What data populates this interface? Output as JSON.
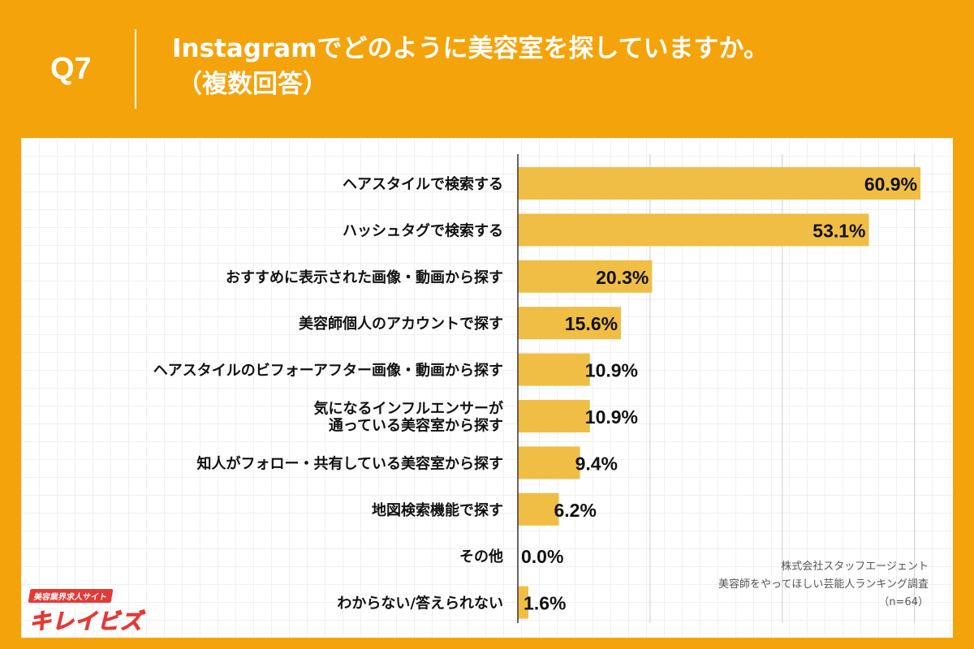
{
  "header": {
    "question_number": "Q7",
    "title_line1": "Instagramでどのように美容室を探していますか。",
    "title_line2": "（複数回答）"
  },
  "credit": {
    "line1": "株式会社スタッフエージェント",
    "line2": "美容師をやってほしい芸能人ランキング調査",
    "line3": "（n=64）"
  },
  "logo": {
    "tagline": "美容業界求人サイト",
    "name": "キレイビズ"
  },
  "colors": {
    "background": "#F5A30A",
    "bar": "#F0BE45",
    "gridline": "#cccccc",
    "text": "#111111"
  },
  "chart_data": {
    "type": "bar",
    "orientation": "horizontal",
    "categories": [
      [
        "ヘアスタイルで検索する"
      ],
      [
        "ハッシュタグで検索する"
      ],
      [
        "おすすめに表示された画像・動画から探す"
      ],
      [
        "美容師個人のアカウントで探す"
      ],
      [
        "ヘアスタイルのビフォーアフター画像・動画から探す"
      ],
      [
        "気になるインフルエンサーが",
        "通っている美容室から探す"
      ],
      [
        "知人がフォロー・共有している美容室から探す"
      ],
      [
        "地図検索機能で探す"
      ],
      [
        "その他"
      ],
      [
        "わからない/答えられない"
      ]
    ],
    "values": [
      60.9,
      53.1,
      20.3,
      15.6,
      10.9,
      10.9,
      9.4,
      6.2,
      0.0,
      1.6
    ],
    "value_labels": [
      "60.9%",
      "53.1%",
      "20.3%",
      "15.6%",
      "10.9%",
      "10.9%",
      "9.4%",
      "6.2%",
      "0.0%",
      "1.6%"
    ],
    "xlim": [
      0,
      62
    ],
    "gridlines_at": [
      20,
      40,
      60
    ],
    "axis_tick_labels_shown": false,
    "title": "",
    "xlabel": "",
    "ylabel": ""
  }
}
